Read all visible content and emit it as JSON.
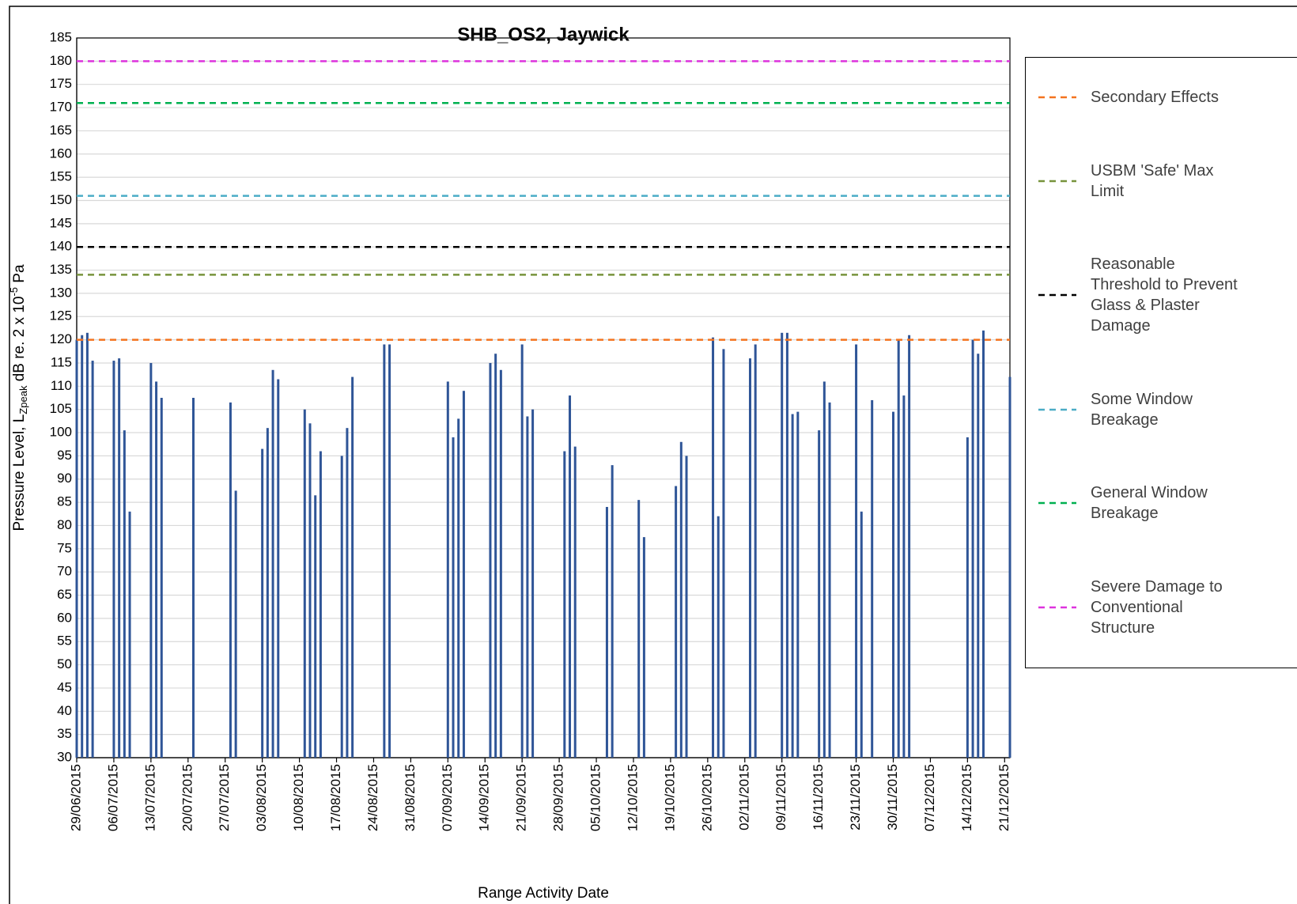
{
  "chart_data": {
    "type": "bar",
    "title": "SHB_OS2, Jaywick",
    "x_label": "Range Activity Date",
    "y_label": [
      "Pressure Level, L",
      "Zpeak",
      " dB re. 2 x 10",
      "-5",
      " Pa"
    ],
    "color": "#2f5597",
    "grid": true,
    "legend": "right",
    "ylim": [
      30,
      185
    ],
    "yticks": [
      30,
      35,
      40,
      45,
      50,
      55,
      60,
      65,
      70,
      75,
      80,
      85,
      90,
      95,
      100,
      105,
      110,
      115,
      120,
      125,
      130,
      135,
      140,
      145,
      150,
      155,
      160,
      165,
      170,
      175,
      180,
      185
    ],
    "xlim": [
      "29/06/2015",
      "22/12/2015"
    ],
    "xticks": [
      "29/06/2015",
      "06/07/2015",
      "13/07/2015",
      "20/07/2015",
      "27/07/2015",
      "03/08/2015",
      "10/08/2015",
      "17/08/2015",
      "24/08/2015",
      "31/08/2015",
      "07/09/2015",
      "14/09/2015",
      "21/09/2015",
      "28/09/2015",
      "05/10/2015",
      "12/10/2015",
      "19/10/2015",
      "26/10/2015",
      "02/11/2015",
      "09/11/2015",
      "16/11/2015",
      "23/11/2015",
      "30/11/2015",
      "07/12/2015",
      "14/12/2015",
      "21/12/2015"
    ],
    "x": [
      "29/06/2015",
      "30/06/2015",
      "01/07/2015",
      "02/07/2015",
      "06/07/2015",
      "07/07/2015",
      "08/07/2015",
      "09/07/2015",
      "13/07/2015",
      "14/07/2015",
      "15/07/2015",
      "21/07/2015",
      "28/07/2015",
      "29/07/2015",
      "03/08/2015",
      "04/08/2015",
      "05/08/2015",
      "06/08/2015",
      "11/08/2015",
      "12/08/2015",
      "13/08/2015",
      "14/08/2015",
      "18/08/2015",
      "19/08/2015",
      "20/08/2015",
      "26/08/2015",
      "27/08/2015",
      "07/09/2015",
      "08/09/2015",
      "09/09/2015",
      "10/09/2015",
      "15/09/2015",
      "16/09/2015",
      "17/09/2015",
      "21/09/2015",
      "22/09/2015",
      "23/09/2015",
      "29/09/2015",
      "30/09/2015",
      "01/10/2015",
      "07/10/2015",
      "08/10/2015",
      "13/10/2015",
      "14/10/2015",
      "20/10/2015",
      "21/10/2015",
      "22/10/2015",
      "27/10/2015",
      "28/10/2015",
      "29/10/2015",
      "03/11/2015",
      "04/11/2015",
      "09/11/2015",
      "10/11/2015",
      "11/11/2015",
      "12/11/2015",
      "16/11/2015",
      "17/11/2015",
      "18/11/2015",
      "23/11/2015",
      "24/11/2015",
      "26/11/2015",
      "30/11/2015",
      "01/12/2015",
      "02/12/2015",
      "03/12/2015",
      "14/12/2015",
      "15/12/2015",
      "16/12/2015",
      "17/12/2015",
      "22/12/2015"
    ],
    "values": [
      120,
      121,
      121.5,
      115.5,
      115.5,
      116,
      100.5,
      83,
      115,
      111,
      107.5,
      107.5,
      106.5,
      87.5,
      96.5,
      101,
      113.5,
      111.5,
      105,
      102,
      86.5,
      96,
      95,
      101,
      112,
      119,
      119,
      111,
      99,
      103,
      109,
      115,
      117,
      113.5,
      119,
      103.5,
      105,
      96,
      108,
      97,
      84,
      93,
      85.5,
      77.5,
      88.5,
      98,
      95,
      120.5,
      82,
      118,
      116,
      119,
      121.5,
      121.5,
      104,
      104.5,
      100.5,
      111,
      106.5,
      119,
      83,
      107,
      104.5,
      120,
      108,
      121,
      99,
      120,
      117,
      122,
      112
    ],
    "reference_lines": [
      {
        "name": "Secondary Effects",
        "color": "#f4731f",
        "value": 120
      },
      {
        "name": "USBM 'Safe' Max Limit",
        "color": "#77933c",
        "value": 134
      },
      {
        "name": "Reasonable Threshold to Prevent Glass & Plaster Damage",
        "color": "#000000",
        "value": 140
      },
      {
        "name": "Some Window Breakage",
        "color": "#4bacc6",
        "value": 151
      },
      {
        "name": "General Window Breakage",
        "color": "#00b050",
        "value": 171
      },
      {
        "name": "Severe Damage to Conventional Structure",
        "color": "#dd33dd",
        "value": 180
      }
    ]
  }
}
